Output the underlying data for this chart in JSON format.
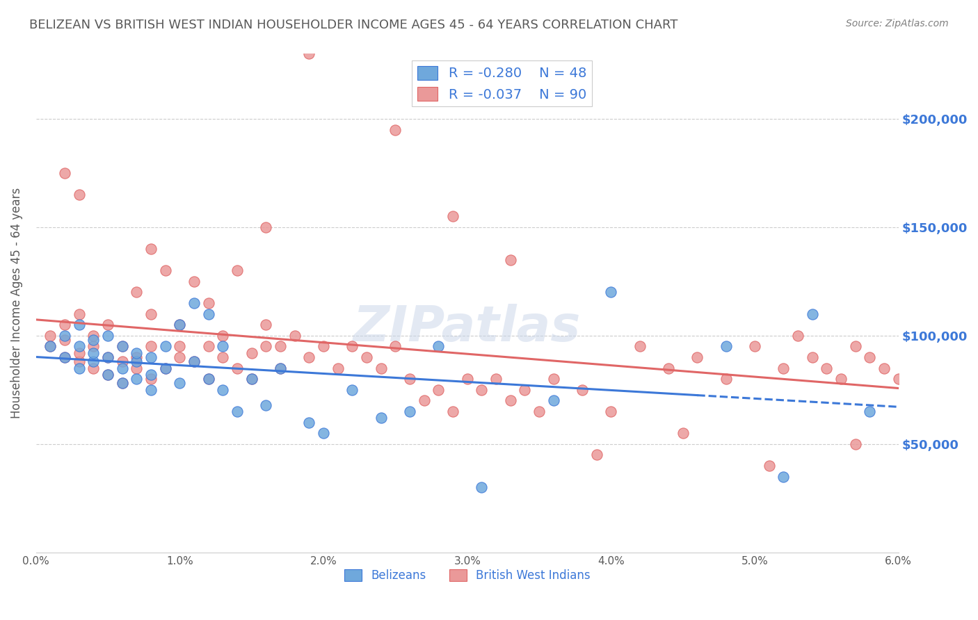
{
  "title": "BELIZEAN VS BRITISH WEST INDIAN HOUSEHOLDER INCOME AGES 45 - 64 YEARS CORRELATION CHART",
  "source": "Source: ZipAtlas.com",
  "ylabel": "Householder Income Ages 45 - 64 years",
  "watermark": "ZIPatlas",
  "legend_blue_r": "-0.280",
  "legend_blue_n": "48",
  "legend_pink_r": "-0.037",
  "legend_pink_n": "90",
  "ytick_labels": [
    "$50,000",
    "$100,000",
    "$150,000",
    "$200,000"
  ],
  "ytick_values": [
    50000,
    100000,
    150000,
    200000
  ],
  "ymin": 0,
  "ymax": 230000,
  "xmin": 0.0,
  "xmax": 0.06,
  "blue_color": "#6fa8dc",
  "pink_color": "#ea9999",
  "blue_line_color": "#3c78d8",
  "pink_line_color": "#e06666",
  "title_color": "#595959",
  "source_color": "#808080",
  "right_ytick_color": "#3c78d8",
  "legend_text_color": "#3c78d8",
  "background_color": "#ffffff",
  "blue_scatter_x": [
    0.001,
    0.002,
    0.002,
    0.003,
    0.003,
    0.003,
    0.004,
    0.004,
    0.004,
    0.005,
    0.005,
    0.005,
    0.006,
    0.006,
    0.006,
    0.007,
    0.007,
    0.007,
    0.008,
    0.008,
    0.008,
    0.009,
    0.009,
    0.01,
    0.01,
    0.011,
    0.011,
    0.012,
    0.012,
    0.013,
    0.013,
    0.014,
    0.015,
    0.016,
    0.017,
    0.019,
    0.02,
    0.022,
    0.024,
    0.026,
    0.028,
    0.031,
    0.036,
    0.04,
    0.048,
    0.052,
    0.054,
    0.058
  ],
  "blue_scatter_y": [
    95000,
    90000,
    100000,
    85000,
    95000,
    105000,
    88000,
    92000,
    98000,
    82000,
    90000,
    100000,
    78000,
    85000,
    95000,
    80000,
    88000,
    92000,
    75000,
    82000,
    90000,
    85000,
    95000,
    105000,
    78000,
    88000,
    115000,
    80000,
    110000,
    95000,
    75000,
    65000,
    80000,
    68000,
    85000,
    60000,
    55000,
    75000,
    62000,
    65000,
    95000,
    30000,
    70000,
    120000,
    95000,
    35000,
    110000,
    65000
  ],
  "pink_scatter_x": [
    0.001,
    0.001,
    0.002,
    0.002,
    0.002,
    0.003,
    0.003,
    0.003,
    0.004,
    0.004,
    0.004,
    0.005,
    0.005,
    0.005,
    0.006,
    0.006,
    0.006,
    0.007,
    0.007,
    0.007,
    0.008,
    0.008,
    0.008,
    0.009,
    0.009,
    0.01,
    0.01,
    0.01,
    0.011,
    0.011,
    0.012,
    0.012,
    0.012,
    0.013,
    0.013,
    0.014,
    0.014,
    0.015,
    0.015,
    0.016,
    0.016,
    0.017,
    0.017,
    0.018,
    0.019,
    0.02,
    0.021,
    0.022,
    0.023,
    0.024,
    0.025,
    0.026,
    0.027,
    0.028,
    0.029,
    0.03,
    0.031,
    0.032,
    0.033,
    0.034,
    0.035,
    0.036,
    0.038,
    0.04,
    0.042,
    0.044,
    0.046,
    0.048,
    0.05,
    0.052,
    0.053,
    0.054,
    0.055,
    0.056,
    0.057,
    0.058,
    0.059,
    0.06,
    0.002,
    0.003,
    0.008,
    0.016,
    0.019,
    0.025,
    0.029,
    0.033,
    0.039,
    0.045,
    0.051,
    0.057
  ],
  "pink_scatter_y": [
    100000,
    95000,
    105000,
    90000,
    98000,
    88000,
    92000,
    110000,
    85000,
    95000,
    100000,
    82000,
    90000,
    105000,
    78000,
    88000,
    95000,
    85000,
    90000,
    120000,
    80000,
    110000,
    95000,
    85000,
    130000,
    90000,
    105000,
    95000,
    88000,
    125000,
    80000,
    95000,
    115000,
    90000,
    100000,
    85000,
    130000,
    92000,
    80000,
    95000,
    105000,
    85000,
    95000,
    100000,
    90000,
    95000,
    85000,
    95000,
    90000,
    85000,
    95000,
    80000,
    70000,
    75000,
    65000,
    80000,
    75000,
    80000,
    70000,
    75000,
    65000,
    80000,
    75000,
    65000,
    95000,
    85000,
    90000,
    80000,
    95000,
    85000,
    100000,
    90000,
    85000,
    80000,
    95000,
    90000,
    85000,
    80000,
    175000,
    165000,
    140000,
    150000,
    230000,
    195000,
    155000,
    135000,
    45000,
    55000,
    40000,
    50000
  ]
}
